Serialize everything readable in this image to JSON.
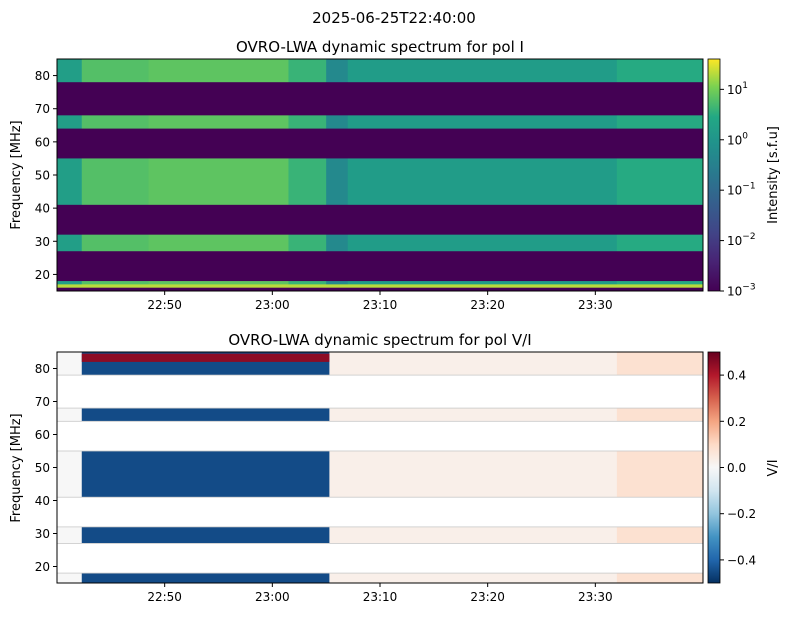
{
  "figure": {
    "suptitle": "2025-06-25T22:40:00"
  },
  "chart_data": [
    {
      "type": "heatmap",
      "title": "OVRO-LWA dynamic spectrum for pol I",
      "xlabel": "",
      "ylabel": "Frequency [MHz]",
      "x_range": [
        "22:40",
        "23:40"
      ],
      "xticks": [
        {
          "t": 10,
          "label": "22:50"
        },
        {
          "t": 20,
          "label": "23:00"
        },
        {
          "t": 30,
          "label": "23:10"
        },
        {
          "t": 40,
          "label": "23:20"
        },
        {
          "t": 50,
          "label": "23:30"
        }
      ],
      "ylim": [
        15,
        85
      ],
      "yticks": [
        20,
        30,
        40,
        50,
        60,
        70,
        80
      ],
      "colormap": "viridis",
      "color_scale": "log",
      "colorbar": {
        "label": "Intensity [s.f.u]",
        "range": [
          0.001,
          40
        ],
        "ticks": [
          {
            "value": 10,
            "base": "10",
            "exp": "1"
          },
          {
            "value": 1,
            "base": "10",
            "exp": "0"
          },
          {
            "value": 0.1,
            "base": "10",
            "exp": "−1"
          },
          {
            "value": 0.01,
            "base": "10",
            "exp": "−2"
          },
          {
            "value": 0.001,
            "base": "10",
            "exp": "−3"
          }
        ]
      },
      "flagged_bands_mhz": [
        [
          15,
          16
        ],
        [
          18,
          27
        ],
        [
          32,
          41
        ],
        [
          55,
          64
        ],
        [
          68,
          78
        ]
      ],
      "flagged_intensity": 0.001,
      "time_segments_min": [
        {
          "t0": 0,
          "t1": 2.3,
          "intensity": 1.6
        },
        {
          "t0": 2.3,
          "t1": 8.5,
          "intensity": 6
        },
        {
          "t0": 8.5,
          "t1": 21.5,
          "intensity": 7
        },
        {
          "t0": 21.5,
          "t1": 25,
          "intensity": 4
        },
        {
          "t0": 25,
          "t1": 27,
          "intensity": 0.5
        },
        {
          "t0": 27,
          "t1": 52,
          "intensity": 1.4
        },
        {
          "t0": 52,
          "t1": 60,
          "intensity": 3
        }
      ],
      "bright_bottom_channel": {
        "mhz": [
          15,
          17
        ],
        "intensity": 20
      }
    },
    {
      "type": "heatmap",
      "title": "OVRO-LWA dynamic spectrum for pol V/I",
      "xlabel": "",
      "ylabel": "Frequency [MHz]",
      "x_range": [
        "22:40",
        "23:40"
      ],
      "xticks": [
        {
          "t": 10,
          "label": "22:50"
        },
        {
          "t": 20,
          "label": "23:00"
        },
        {
          "t": 30,
          "label": "23:10"
        },
        {
          "t": 40,
          "label": "23:20"
        },
        {
          "t": 50,
          "label": "23:30"
        }
      ],
      "ylim": [
        15,
        85
      ],
      "yticks": [
        20,
        30,
        40,
        50,
        60,
        70,
        80
      ],
      "colormap": "RdBu_r",
      "color_scale": "linear",
      "colorbar": {
        "label": "V/I",
        "range": [
          -0.5,
          0.5
        ],
        "ticks": [
          {
            "value": 0.4,
            "label": "0.4"
          },
          {
            "value": 0.2,
            "label": "0.2"
          },
          {
            "value": 0.0,
            "label": "0.0"
          },
          {
            "value": -0.2,
            "label": "−0.2"
          },
          {
            "value": -0.4,
            "label": "−0.4"
          }
        ]
      },
      "valid_bands_mhz": [
        [
          15,
          18
        ],
        [
          27,
          32
        ],
        [
          41,
          55
        ],
        [
          64,
          68
        ],
        [
          78,
          85
        ]
      ],
      "time_segments_min": [
        {
          "t0": 0,
          "t1": 2.3,
          "value": 0.0
        },
        {
          "t0": 2.3,
          "t1": 25.3,
          "value": -0.45
        },
        {
          "t0": 25.3,
          "t1": 52,
          "value": 0.03
        },
        {
          "t0": 52,
          "t1": 60,
          "value": 0.08
        }
      ],
      "positive_stripe_mhz": [
        [
          82,
          84.5
        ]
      ],
      "positive_stripe_value": 0.45
    }
  ]
}
